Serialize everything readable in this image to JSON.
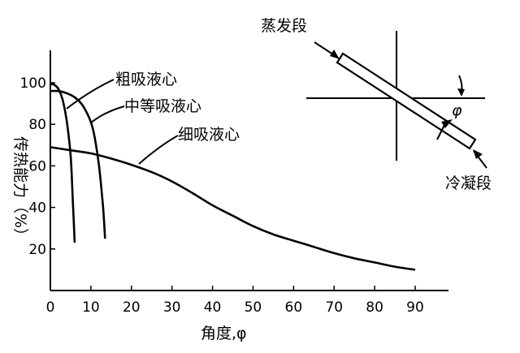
{
  "chart_data": {
    "type": "line",
    "xlabel": "角度,φ",
    "ylabel": "传热能力（%）",
    "xlim": [
      0,
      90
    ],
    "ylim": [
      0,
      100
    ],
    "x_ticks": [
      "0",
      "10",
      "20",
      "30",
      "40",
      "50",
      "60",
      "70",
      "80",
      "90"
    ],
    "y_ticks": [
      "20",
      "40",
      "60",
      "80",
      "100"
    ],
    "grid": false,
    "series": [
      {
        "name": "粗吸液心",
        "x": [
          0,
          1,
          2,
          3,
          4,
          5,
          5.5,
          6
        ],
        "y": [
          99.5,
          99,
          97,
          92,
          82,
          65,
          45,
          23
        ]
      },
      {
        "name": "中等吸液心",
        "x": [
          0,
          2,
          4,
          6,
          8,
          10,
          11,
          12,
          13,
          13.5
        ],
        "y": [
          96,
          96,
          95,
          93,
          89,
          81,
          73,
          60,
          40,
          25
        ]
      },
      {
        "name": "细吸液心",
        "x": [
          0,
          5,
          10,
          15,
          20,
          25,
          30,
          35,
          40,
          45,
          50,
          55,
          60,
          65,
          70,
          75,
          80,
          85,
          90
        ],
        "y": [
          69,
          67.5,
          66,
          63.5,
          60.5,
          57,
          52.5,
          47,
          41,
          36,
          31,
          27,
          24,
          21,
          18,
          15.5,
          13.5,
          11.5,
          10
        ]
      }
    ],
    "inset": {
      "evaporator_label": "蒸发段",
      "condenser_label": "冷凝段",
      "angle_label": "φ"
    }
  }
}
